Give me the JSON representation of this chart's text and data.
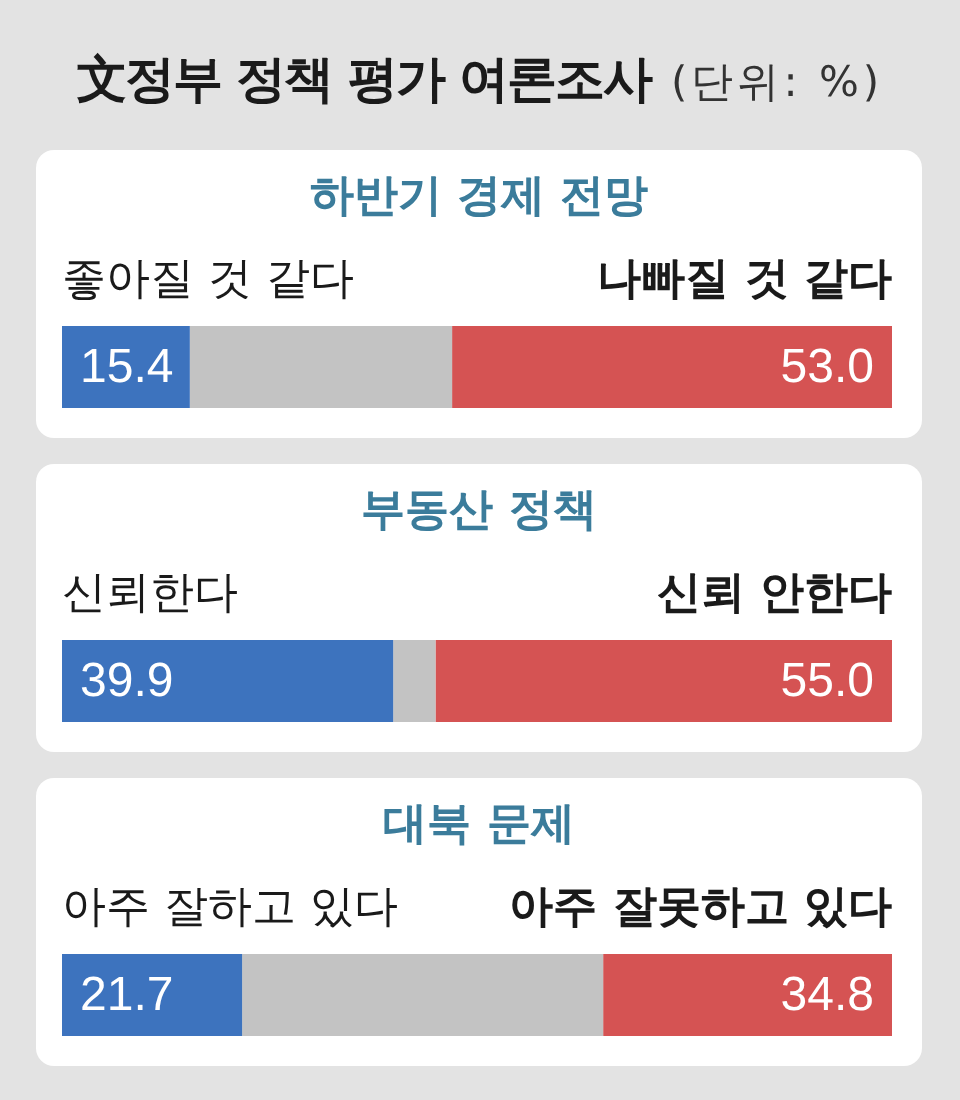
{
  "chart_data": [
    {
      "type": "other",
      "title": "文정부 정책 평가 여론조사",
      "subtitle": "(단위: %)"
    },
    {
      "type": "bar",
      "title": "하반기 경제 전망",
      "orientation": "horizontal",
      "stacked": true,
      "categories": [
        null
      ],
      "xlim": [
        0,
        100
      ],
      "tick_labels": false,
      "series": [
        {
          "name": "좋아질 것 같다",
          "color": "#3d73be",
          "values": [
            15.4
          ],
          "value_labels": [
            "15.4"
          ]
        },
        {
          "color": "#c3c3c3",
          "values": [
            31.6
          ]
        },
        {
          "name": "나빠질 것 같다",
          "color": "#d55353",
          "values": [
            53.0
          ],
          "value_labels": [
            "53.0"
          ]
        }
      ]
    },
    {
      "type": "bar",
      "title": "부동산 정책",
      "orientation": "horizontal",
      "stacked": true,
      "categories": [
        null
      ],
      "xlim": [
        0,
        100
      ],
      "tick_labels": false,
      "series": [
        {
          "name": "신뢰한다",
          "color": "#3d73be",
          "values": [
            39.9
          ],
          "value_labels": [
            "39.9"
          ]
        },
        {
          "color": "#c3c3c3",
          "values": [
            5.1
          ]
        },
        {
          "name": "신뢰 안한다",
          "color": "#d55353",
          "values": [
            55.0
          ],
          "value_labels": [
            "55.0"
          ]
        }
      ]
    },
    {
      "type": "bar",
      "title": "대북 문제",
      "orientation": "horizontal",
      "stacked": true,
      "categories": [
        null
      ],
      "xlim": [
        0,
        100
      ],
      "tick_labels": false,
      "series": [
        {
          "name": "아주 잘하고 있다",
          "color": "#3d73be",
          "values": [
            21.7
          ],
          "value_labels": [
            "21.7"
          ]
        },
        {
          "color": "#c3c3c3",
          "values": [
            43.5
          ]
        },
        {
          "name": "아주 잘못하고 있다",
          "color": "#d55353",
          "values": [
            34.8
          ],
          "value_labels": [
            "34.8"
          ]
        }
      ]
    }
  ]
}
